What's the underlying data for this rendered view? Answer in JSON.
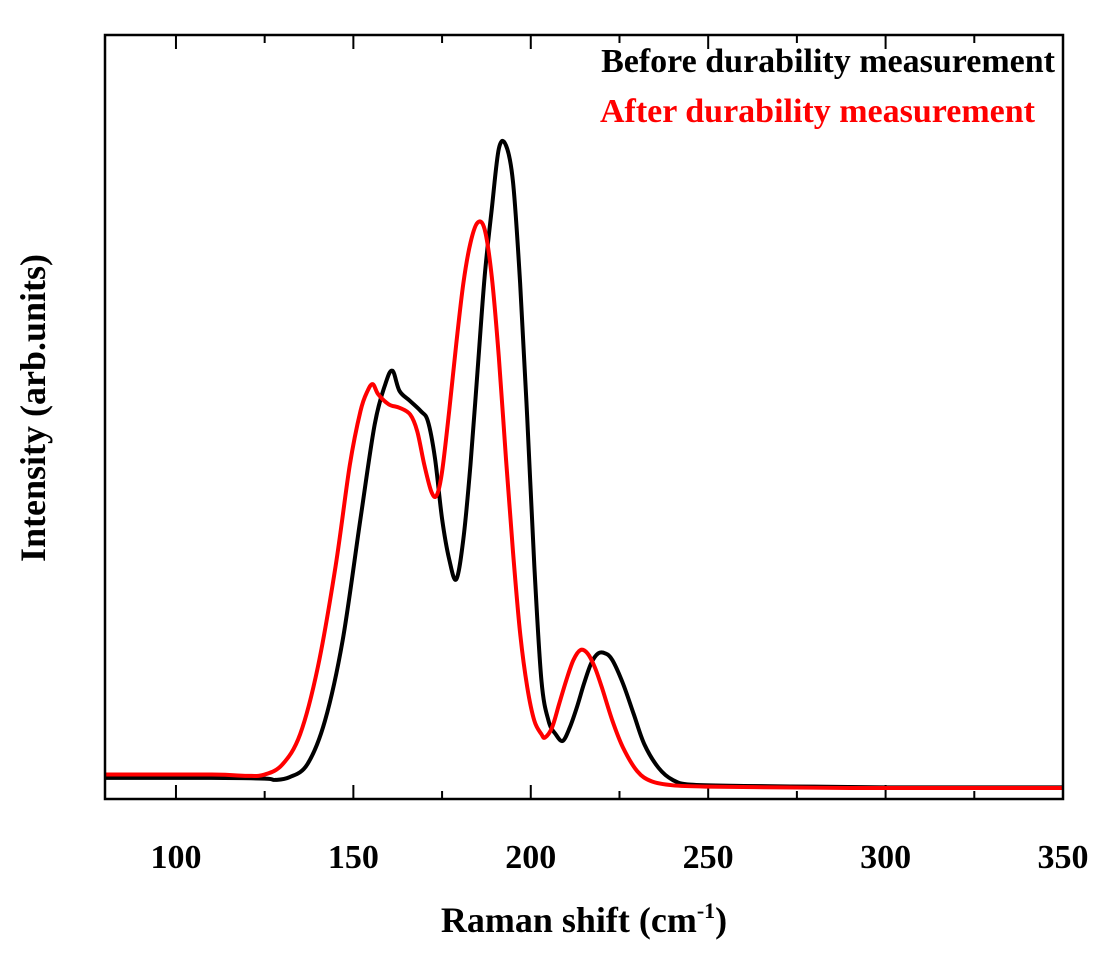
{
  "chart_data": {
    "type": "line",
    "title": "",
    "xlabel": "Raman shift (cm",
    "xlabel_superscript": "-1",
    "xlabel_suffix": ")",
    "ylabel": "Intensity (arb.units)",
    "xlim": [
      80,
      350
    ],
    "ylim": [
      0,
      100
    ],
    "x_ticks": [
      100,
      150,
      200,
      250,
      300,
      350
    ],
    "x_tick_labels": [
      "100",
      "150",
      "200",
      "250",
      "300",
      "350"
    ],
    "grid": false,
    "legend_position": "top-right",
    "series": [
      {
        "name": "Before durability measurement",
        "color": "#000000",
        "x": [
          80,
          110,
          125,
          128,
          132,
          137,
          142,
          147,
          152,
          156,
          159,
          161,
          163,
          166,
          169,
          171,
          173,
          175,
          177,
          179,
          181,
          183,
          185,
          187,
          189,
          191,
          193,
          195,
          197,
          199,
          201,
          203,
          205,
          207,
          209,
          211,
          213,
          215,
          217,
          219,
          221,
          223,
          226,
          229,
          232,
          236,
          240,
          245,
          260,
          280,
          300,
          320,
          350
        ],
        "y": [
          1.5,
          1.5,
          1.4,
          1.2,
          1.6,
          3.5,
          10,
          22,
          40,
          54,
          60,
          62,
          59,
          57.5,
          56,
          54.5,
          49,
          40,
          34,
          31,
          37,
          48,
          62,
          76,
          86,
          95,
          95.5,
          90,
          75,
          55,
          33,
          16,
          10,
          8,
          7,
          9,
          12,
          15.5,
          18.5,
          20,
          20,
          19,
          15.5,
          11,
          6.5,
          3,
          1.2,
          0.5,
          0.3,
          0.2,
          0.1,
          0.1,
          0.1
        ]
      },
      {
        "name": "After durability measurement",
        "color": "#ff0000",
        "x": [
          80,
          110,
          120,
          125,
          130,
          135,
          140,
          145,
          149,
          152,
          154,
          155.5,
          157,
          160,
          163,
          166,
          168,
          170,
          172,
          173.5,
          175,
          177,
          179,
          181,
          183,
          185,
          187,
          189,
          191,
          193,
          195,
          197,
          199,
          201,
          203,
          204,
          206,
          208,
          210,
          212,
          214,
          216,
          218,
          220,
          223,
          226,
          230,
          234,
          240,
          250,
          270,
          290,
          310,
          330,
          350
        ],
        "y": [
          2,
          2,
          1.8,
          2,
          3.5,
          8,
          18,
          33,
          48,
          56,
          59,
          60,
          58.5,
          57,
          56.5,
          55.5,
          53,
          48,
          44,
          43.5,
          47,
          56,
          66,
          75,
          81,
          84,
          83,
          76,
          64,
          49,
          35,
          23,
          15,
          10,
          8,
          7.5,
          9,
          12.5,
          16,
          19,
          20.5,
          20,
          18,
          15,
          10,
          6,
          2.5,
          1,
          0.4,
          0.2,
          0.1,
          0,
          0,
          0,
          0
        ]
      }
    ]
  }
}
